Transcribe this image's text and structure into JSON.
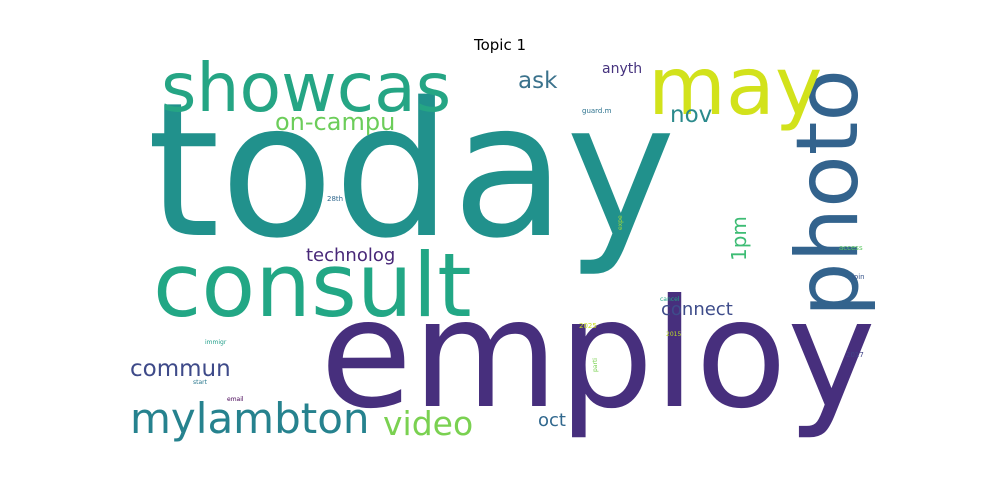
{
  "title": "Topic 1",
  "words": [
    {
      "text": "today",
      "color": "#21918c"
    },
    {
      "text": "employ",
      "color": "#472f7d"
    },
    {
      "text": "consult",
      "color": "#22a785"
    },
    {
      "text": "photo",
      "color": "#33638d"
    },
    {
      "text": "showcas",
      "color": "#25a584"
    },
    {
      "text": "may",
      "color": "#d2e21b"
    },
    {
      "text": "mylambton",
      "color": "#26828e"
    },
    {
      "text": "video",
      "color": "#7ad151"
    },
    {
      "text": "on-campu",
      "color": "#6ccd5a"
    },
    {
      "text": "ask",
      "color": "#3b728c"
    },
    {
      "text": "nov",
      "color": "#2b8a8c"
    },
    {
      "text": "commun",
      "color": "#3e4a89"
    },
    {
      "text": "technolog",
      "color": "#482878"
    },
    {
      "text": "1pm",
      "color": "#3dbc74"
    },
    {
      "text": "connect",
      "color": "#3e4c8a"
    },
    {
      "text": "oct",
      "color": "#31688e"
    },
    {
      "text": "anyth",
      "color": "#46337e"
    },
    {
      "text": "guard.m",
      "color": "#2c728e"
    },
    {
      "text": "28th",
      "color": "#31688e"
    },
    {
      "text": "expe",
      "color": "#a0da39"
    },
    {
      "text": "access",
      "color": "#5ec962"
    },
    {
      "text": "join",
      "color": "#39568c"
    },
    {
      "text": "cancel",
      "color": "#21a685"
    },
    {
      "text": "2025",
      "color": "#cae11f"
    },
    {
      "text": "2015",
      "color": "#bddf26"
    },
    {
      "text": "parti",
      "color": "#7ad151"
    },
    {
      "text": "2017",
      "color": "#414487"
    },
    {
      "text": "immigr",
      "color": "#1f9e89"
    },
    {
      "text": "start",
      "color": "#2a788e"
    },
    {
      "text": "email",
      "color": "#440154"
    }
  ]
}
